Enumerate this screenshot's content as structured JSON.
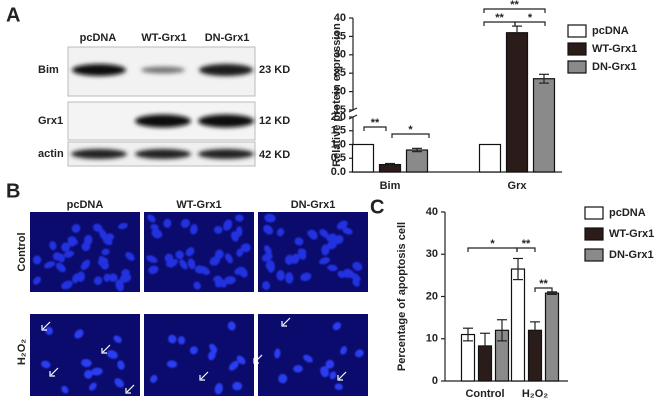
{
  "panels": [
    "A",
    "B",
    "C"
  ],
  "blot": {
    "columns": [
      "pcDNA",
      "WT-Grx1",
      "DN-Grx1"
    ],
    "rows": [
      {
        "label": "Bim",
        "size": "23 KD"
      },
      {
        "label": "Grx1",
        "size": "12 KD"
      },
      {
        "label": "actin",
        "size": "42 KD"
      }
    ]
  },
  "images": {
    "columns": [
      "pcDNA",
      "WT-Grx1",
      "DN-Grx1"
    ],
    "rows": [
      "Control",
      "H₂O₂"
    ]
  },
  "chart_data": [
    {
      "type": "bar",
      "y_label": "Relative protein expression",
      "categories": [
        "Bim",
        "Grx"
      ],
      "series": [
        {
          "name": "pcDNA",
          "color": "#ffffff",
          "values": [
            1.0,
            1.0
          ],
          "errors": [
            0,
            0
          ]
        },
        {
          "name": "WT-Grx1",
          "color": "#2b1b19",
          "values": [
            0.27,
            36
          ],
          "errors": [
            0.04,
            1.8
          ]
        },
        {
          "name": "DN-Grx1",
          "color": "#8a8a8a",
          "values": [
            0.8,
            23.5
          ],
          "errors": [
            0.06,
            1.2
          ]
        }
      ],
      "ylim": [
        0,
        40
      ],
      "ybreak": [
        2,
        15
      ],
      "yticks": [
        {
          "value": 0,
          "label": "0.0"
        },
        0.5,
        {
          "value": 1,
          "label": "1.0"
        },
        1.5,
        {
          "value": 2,
          "label": "2.0"
        },
        15,
        20,
        25,
        30,
        35,
        40
      ],
      "annotations": [
        "**",
        "*",
        "**",
        "**",
        "*"
      ],
      "legend": "right"
    },
    {
      "type": "bar",
      "y_label": "Percentage of apoptosis cell",
      "categories": [
        "Control",
        "H₂O₂"
      ],
      "series": [
        {
          "name": "pcDNA",
          "color": "#ffffff",
          "values": [
            11,
            26.5
          ],
          "errors": [
            1.5,
            2.5
          ]
        },
        {
          "name": "WT-Grx1",
          "color": "#2b1b19",
          "values": [
            8.3,
            12
          ],
          "errors": [
            3,
            2
          ]
        },
        {
          "name": "DN-Grx1",
          "color": "#8a8a8a",
          "values": [
            12,
            20.8
          ],
          "errors": [
            2.5,
            0.3
          ]
        }
      ],
      "ylim": [
        0,
        40
      ],
      "yticks": [
        0,
        10,
        20,
        30,
        40
      ],
      "annotations": [
        "*",
        "**",
        "**"
      ],
      "legend": "right"
    }
  ]
}
